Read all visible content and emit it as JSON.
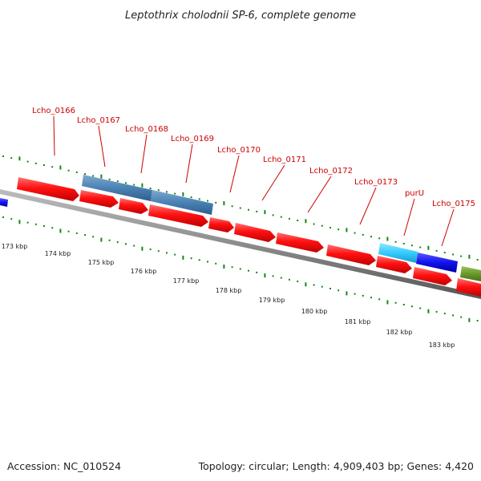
{
  "title": "Leptothrix cholodnii SP-6, complete genome",
  "footer": {
    "accession": "Accession: NC_010524",
    "info": "Topology: circular; Length: 4,909,403 bp; Genes: 4,420"
  },
  "colors": {
    "forward_gene": "#ff1111",
    "steelblue_gene": "#4a82b4",
    "cyan_gene": "#33ccff",
    "blue_gene": "#1111ee",
    "olive_gene": "#6a9a2a",
    "backbone": "#8c8c8c",
    "tick": "#118811",
    "label": "#cc0000"
  },
  "gene_labels": [
    "Lcho_0166",
    "Lcho_0167",
    "Lcho_0168",
    "Lcho_0169",
    "Lcho_0170",
    "Lcho_0171",
    "Lcho_0172",
    "Lcho_0173",
    "purU",
    "Lcho_0175"
  ],
  "kbp_labels": [
    "173 kbp",
    "174 kbp",
    "175 kbp",
    "176 kbp",
    "177 kbp",
    "178 kbp",
    "179 kbp",
    "180 kbp",
    "181 kbp",
    "182 kbp",
    "183 kbp"
  ]
}
